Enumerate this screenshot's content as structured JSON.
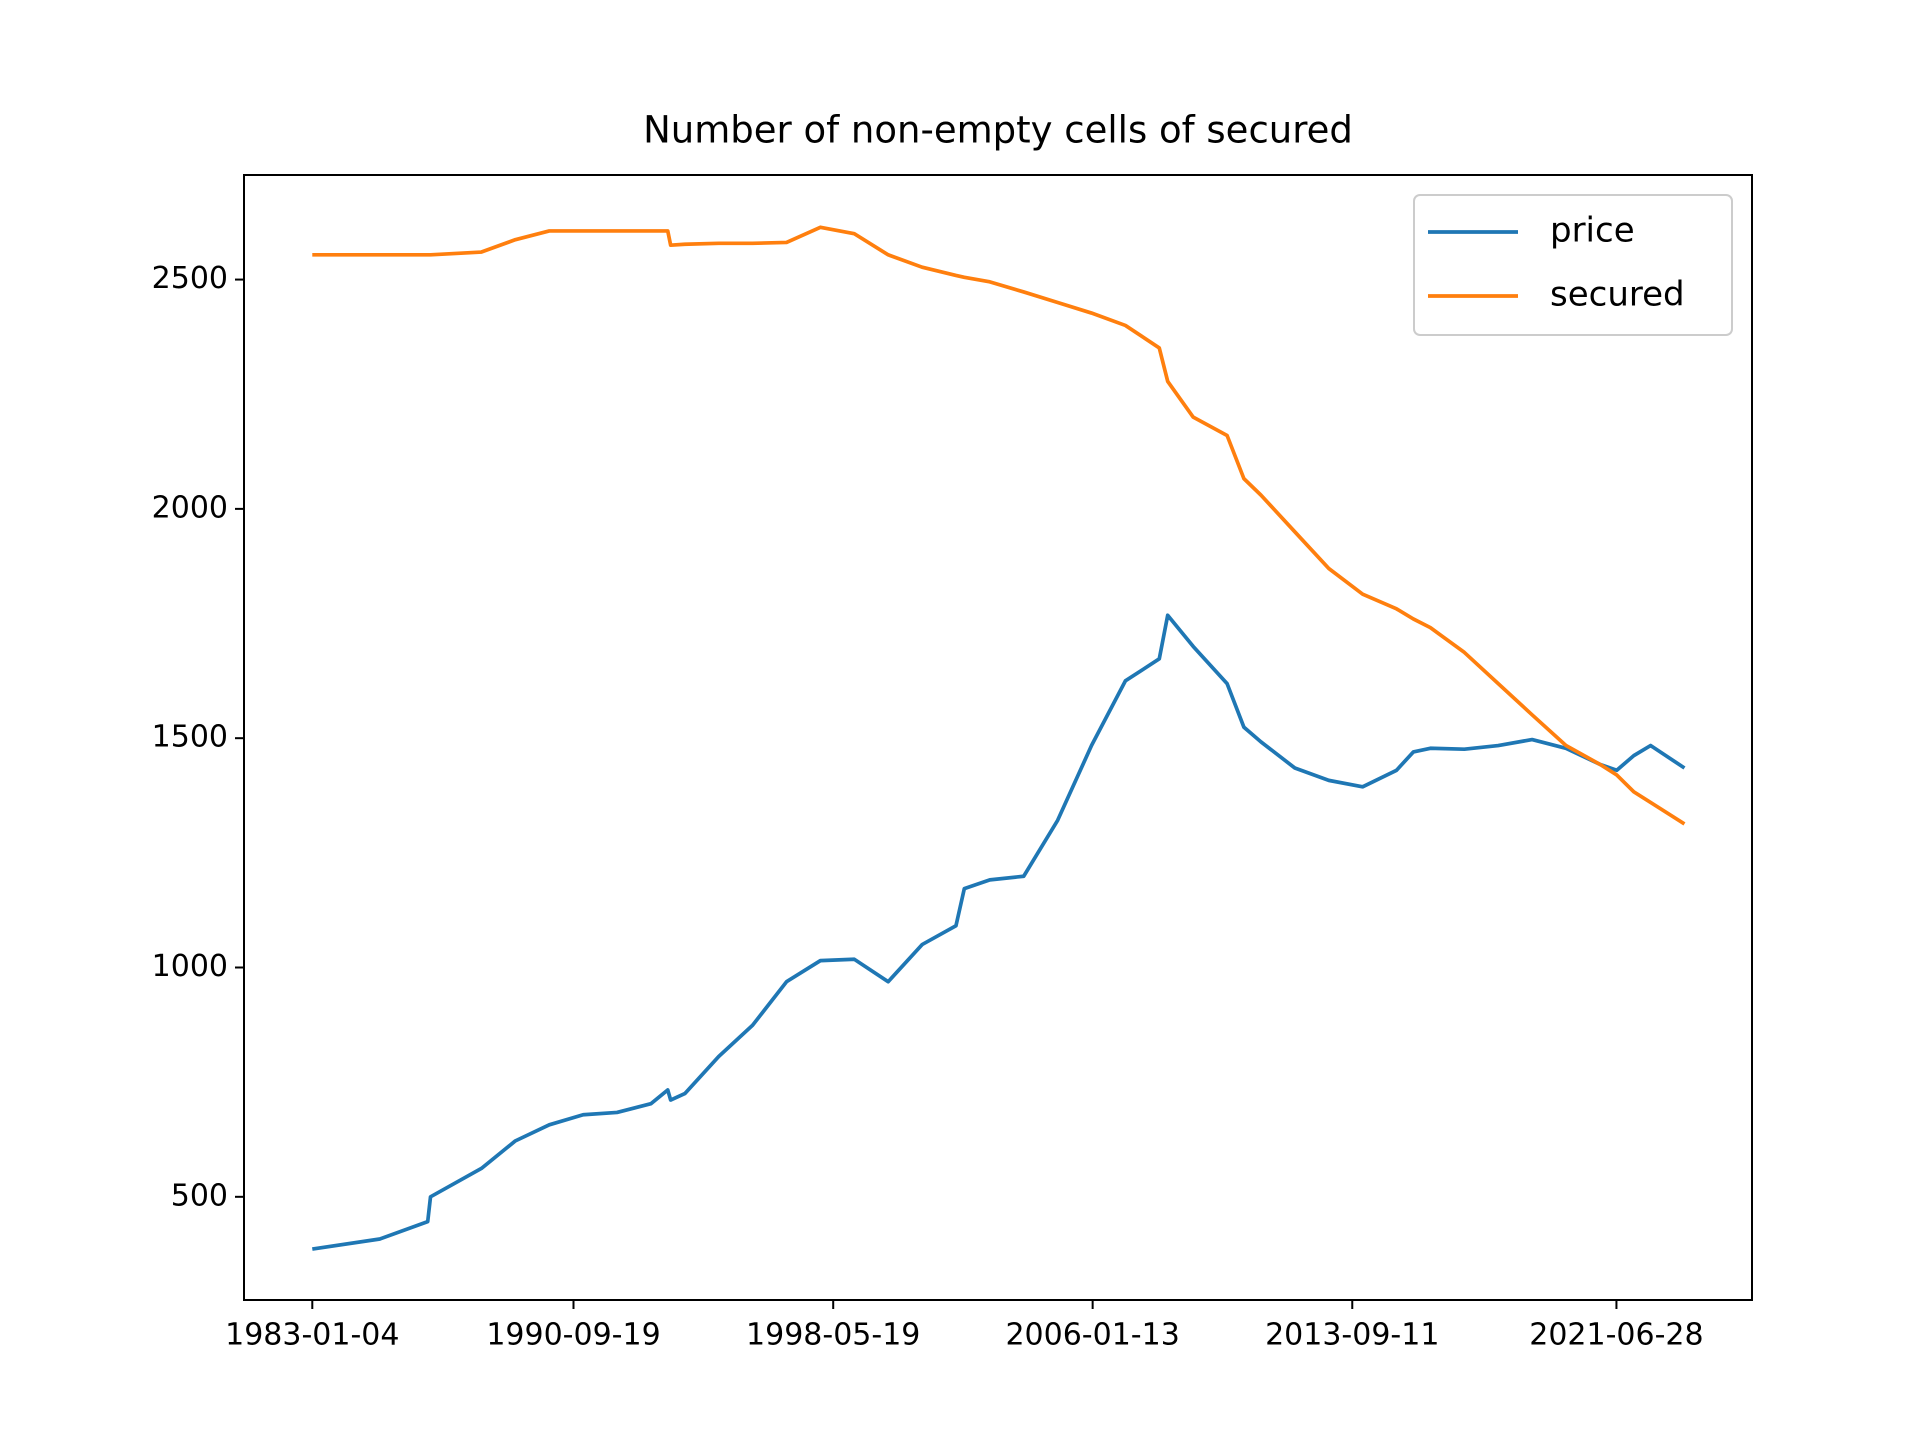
{
  "chart_data": {
    "type": "line",
    "title": "Number of non-empty cells of secured",
    "x": [
      "1983-01-04",
      "1985-01-01",
      "1986-06-01",
      "1986-07-01",
      "1988-01-01",
      "1989-01-01",
      "1990-01-01",
      "1991-01-01",
      "1992-01-01",
      "1993-01-01",
      "1993-07-01",
      "1993-08-01",
      "1994-01-01",
      "1995-01-01",
      "1996-01-01",
      "1997-01-01",
      "1998-01-01",
      "1999-01-01",
      "2000-01-01",
      "2001-01-01",
      "2002-01-01",
      "2002-04-01",
      "2003-01-01",
      "2004-01-01",
      "2005-01-01",
      "2006-01-01",
      "2007-01-01",
      "2008-01-01",
      "2008-04-01",
      "2009-01-01",
      "2010-01-01",
      "2010-07-01",
      "2011-01-01",
      "2012-01-01",
      "2013-01-01",
      "2014-01-01",
      "2015-01-01",
      "2015-07-01",
      "2016-01-01",
      "2017-01-01",
      "2018-01-01",
      "2019-01-01",
      "2020-01-01",
      "2021-01-01",
      "2021-07-01",
      "2022-01-01",
      "2022-07-01",
      "2023-07-01"
    ],
    "series": [
      {
        "name": "price",
        "color": "#1f77b4",
        "values": [
          386,
          408,
          446,
          500,
          562,
          622,
          657,
          679,
          684,
          703,
          733,
          711,
          725,
          806,
          874,
          969,
          1015,
          1018,
          969,
          1050,
          1091,
          1172,
          1191,
          1199,
          1321,
          1484,
          1625,
          1673,
          1768,
          1700,
          1619,
          1524,
          1492,
          1435,
          1408,
          1394,
          1430,
          1470,
          1478,
          1476,
          1484,
          1497,
          1478,
          1443,
          1430,
          1462,
          1484,
          1435
        ]
      },
      {
        "name": "secured",
        "color": "#ff7f0e",
        "values": [
          2554,
          2554,
          2554,
          2554,
          2560,
          2587,
          2606,
          2606,
          2606,
          2606,
          2606,
          2575,
          2577,
          2579,
          2579,
          2581,
          2614,
          2600,
          2554,
          2527,
          2509,
          2505,
          2495,
          2473,
          2450,
          2427,
          2400,
          2351,
          2278,
          2200,
          2160,
          2066,
          2030,
          1950,
          1870,
          1814,
          1782,
          1760,
          1741,
          1687,
          1619,
          1551,
          1484,
          1443,
          1420,
          1383,
          1360,
          1313
        ]
      }
    ],
    "xlim": [
      "1980-12-29",
      "2025-06-28"
    ],
    "xticks": [
      "1983-01-04",
      "1990-09-19",
      "1998-05-19",
      "2006-01-13",
      "2013-09-11",
      "2021-06-28"
    ],
    "ylim": [
      275,
      2728
    ],
    "yticks": [
      500,
      1000,
      1500,
      2000,
      2500
    ],
    "legend": "upper right"
  }
}
